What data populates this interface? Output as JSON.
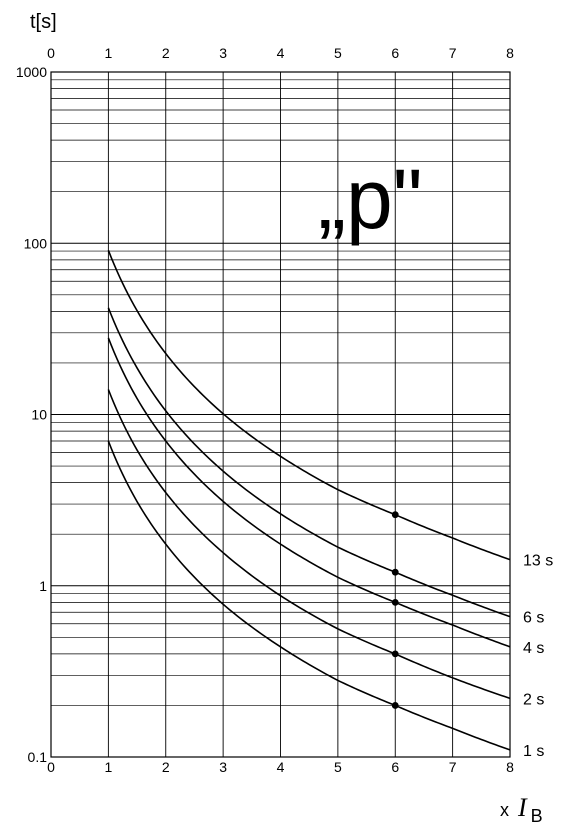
{
  "chart_data": {
    "type": "line",
    "title": "„p\"",
    "ylabel": "t[s]",
    "xlabel_prefix": "x",
    "xlabel_symbol": "I",
    "xlabel_subscript": "B",
    "x_scale": "linear",
    "y_scale": "log",
    "xlim": [
      0,
      8
    ],
    "ylim": [
      0.1,
      1000
    ],
    "grid": true,
    "x_ticks": [
      "0",
      "1",
      "2",
      "3",
      "4",
      "5",
      "6",
      "7",
      "8"
    ],
    "y_ticks": [
      "0.1",
      "1",
      "10",
      "100",
      "1000"
    ],
    "series": [
      {
        "name": "13 s",
        "x": [
          1,
          1.5,
          2,
          3,
          4,
          5,
          6,
          7,
          8
        ],
        "y": [
          91,
          40.4,
          22.7,
          10.1,
          5.7,
          3.64,
          2.6,
          1.9,
          1.42
        ],
        "marker_x": 6,
        "marker_y": 2.6
      },
      {
        "name": "6 s",
        "x": [
          1,
          1.5,
          2,
          3,
          4,
          5,
          6,
          7,
          8
        ],
        "y": [
          42,
          18.7,
          10.5,
          4.67,
          2.63,
          1.68,
          1.2,
          0.88,
          0.66
        ],
        "marker_x": 6,
        "marker_y": 1.2
      },
      {
        "name": "4 s",
        "x": [
          1,
          1.5,
          2,
          3,
          4,
          5,
          6,
          7,
          8
        ],
        "y": [
          28,
          12.4,
          7.0,
          3.11,
          1.75,
          1.12,
          0.8,
          0.59,
          0.44
        ],
        "marker_x": 6,
        "marker_y": 0.8
      },
      {
        "name": "2 s",
        "x": [
          1,
          1.5,
          2,
          3,
          4,
          5,
          6,
          7,
          8
        ],
        "y": [
          14,
          6.2,
          3.5,
          1.56,
          0.875,
          0.56,
          0.4,
          0.29,
          0.22
        ],
        "marker_x": 6,
        "marker_y": 0.4
      },
      {
        "name": "1 s",
        "x": [
          1,
          1.5,
          2,
          3,
          4,
          5,
          6,
          7,
          8
        ],
        "y": [
          7,
          3.1,
          1.75,
          0.78,
          0.44,
          0.28,
          0.2,
          0.147,
          0.11
        ],
        "marker_x": 6,
        "marker_y": 0.2
      }
    ]
  }
}
